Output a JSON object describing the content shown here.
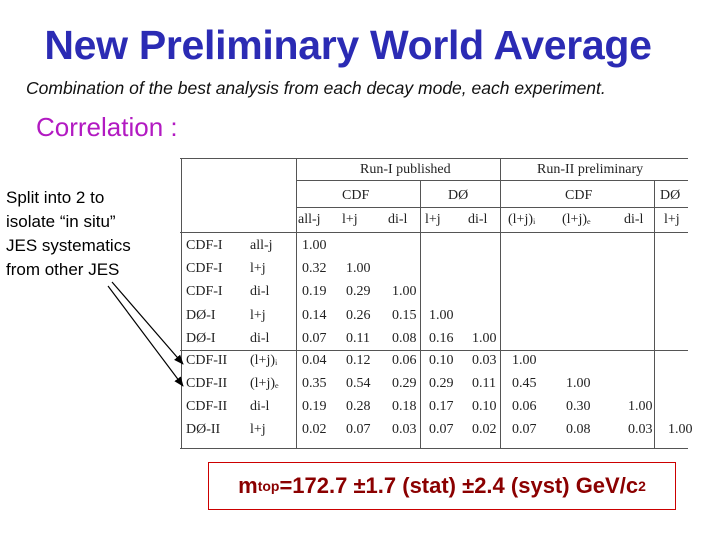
{
  "title": "New Preliminary World Average",
  "subtitle": "Combination of the best analysis from each decay mode, each experiment.",
  "section_heading": "Correlation :",
  "note_lines": [
    "Split into 2 to",
    "isolate “in situ”",
    "JES systematics",
    "from other JES"
  ],
  "result": {
    "lead": "m",
    "sub": "top",
    "body": "=172.7 ±1.7 (stat) ±2.4 (syst) GeV/c",
    "sup": "2"
  },
  "table": {
    "group_headers": [
      "Run-I published",
      "Run-II preliminary"
    ],
    "experiment_headers": [
      "CDF",
      "DØ",
      "CDF",
      "DØ"
    ],
    "column_headers": [
      "all-j",
      "l+j",
      "di-l",
      "l+j",
      "di-l",
      "(l+j)ᵢ",
      "(l+j)ₑ",
      "di-l",
      "l+j"
    ],
    "rows": [
      {
        "exp": "CDF-I",
        "mode": "all-j",
        "values": [
          "1.00"
        ]
      },
      {
        "exp": "CDF-I",
        "mode": "l+j",
        "values": [
          "0.32",
          "1.00"
        ]
      },
      {
        "exp": "CDF-I",
        "mode": "di-l",
        "values": [
          "0.19",
          "0.29",
          "1.00"
        ]
      },
      {
        "exp": "DØ-I",
        "mode": "l+j",
        "values": [
          "0.14",
          "0.26",
          "0.15",
          "1.00"
        ]
      },
      {
        "exp": "DØ-I",
        "mode": "di-l",
        "values": [
          "0.07",
          "0.11",
          "0.08",
          "0.16",
          "1.00"
        ]
      },
      {
        "exp": "CDF-II",
        "mode": "(l+j)ᵢ",
        "values": [
          "0.04",
          "0.12",
          "0.06",
          "0.10",
          "0.03",
          "1.00"
        ]
      },
      {
        "exp": "CDF-II",
        "mode": "(l+j)ₑ",
        "values": [
          "0.35",
          "0.54",
          "0.29",
          "0.29",
          "0.11",
          "0.45",
          "1.00"
        ]
      },
      {
        "exp": "CDF-II",
        "mode": "di-l",
        "values": [
          "0.19",
          "0.28",
          "0.18",
          "0.17",
          "0.10",
          "0.06",
          "0.30",
          "1.00"
        ]
      },
      {
        "exp": "DØ-II",
        "mode": "l+j",
        "values": [
          "0.02",
          "0.07",
          "0.03",
          "0.07",
          "0.02",
          "0.07",
          "0.08",
          "0.03",
          "1.00"
        ]
      }
    ]
  }
}
